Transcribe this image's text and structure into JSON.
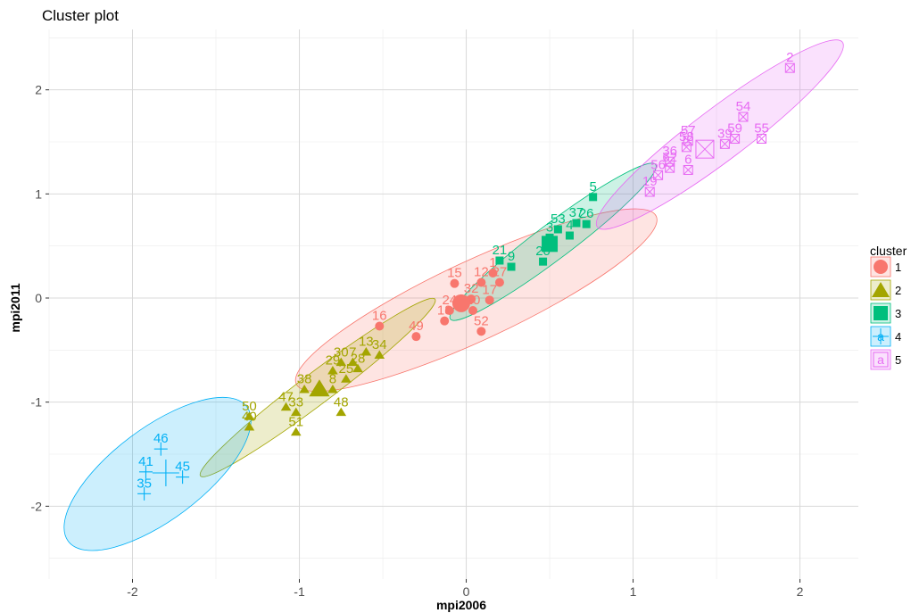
{
  "chart_data": {
    "type": "scatter",
    "title": "Cluster plot",
    "xlabel": "mpi2006",
    "ylabel": "mpi2011",
    "xlim": [
      -2.5,
      2.35
    ],
    "ylim": [
      -2.7,
      2.58
    ],
    "x_ticks": [
      -2,
      -1,
      0,
      1,
      2
    ],
    "x_tick_labels": [
      "-2",
      "-1",
      "0",
      "1",
      "2"
    ],
    "y_ticks": [
      -2,
      -1,
      0,
      1,
      2
    ],
    "y_tick_labels": [
      "-2",
      "-1",
      "0",
      "1",
      "2"
    ],
    "grid": true,
    "legend": {
      "title": "cluster",
      "position": "right",
      "entries": [
        {
          "label": "1",
          "color": "#F8766D",
          "shape": "circle"
        },
        {
          "label": "2",
          "color": "#A3A500",
          "shape": "triangle"
        },
        {
          "label": "3",
          "color": "#00BF7D",
          "shape": "square"
        },
        {
          "label": "4",
          "color": "#00B0F6",
          "shape": "plus",
          "glyph": "a"
        },
        {
          "label": "5",
          "color": "#E76BF3",
          "shape": "boxed-x",
          "glyph": "a"
        }
      ]
    },
    "clusters": [
      {
        "name": "1",
        "color": "#F8766D",
        "shape": "circle",
        "center": [
          -0.03,
          -0.05
        ],
        "ellipse": {
          "cx": 0.06,
          "cy": -0.02,
          "rx": 1.19,
          "ry": 0.38,
          "angle_deg": 25
        },
        "points": [
          {
            "label": "15",
            "x": -0.07,
            "y": 0.14
          },
          {
            "label": "12",
            "x": 0.09,
            "y": 0.15
          },
          {
            "label": "1",
            "x": 0.16,
            "y": 0.24
          },
          {
            "label": "27",
            "x": 0.2,
            "y": 0.15
          },
          {
            "label": "32",
            "x": 0.03,
            "y": -0.01
          },
          {
            "label": "17",
            "x": 0.14,
            "y": -0.02
          },
          {
            "label": "24",
            "x": -0.1,
            "y": -0.12
          },
          {
            "label": "10",
            "x": 0.04,
            "y": -0.12
          },
          {
            "label": "18",
            "x": -0.13,
            "y": -0.22
          },
          {
            "label": "52",
            "x": 0.09,
            "y": -0.32
          },
          {
            "label": "16",
            "x": -0.52,
            "y": -0.27
          },
          {
            "label": "49",
            "x": -0.3,
            "y": -0.37
          }
        ]
      },
      {
        "name": "2",
        "color": "#A3A500",
        "shape": "triangle",
        "center": [
          -0.88,
          -0.88
        ],
        "ellipse": {
          "cx": -0.89,
          "cy": -0.86,
          "rx": 0.88,
          "ry": 0.15,
          "angle_deg": 37
        },
        "points": [
          {
            "label": "13",
            "x": -0.6,
            "y": -0.52
          },
          {
            "label": "34",
            "x": -0.52,
            "y": -0.55
          },
          {
            "label": "30",
            "x": -0.75,
            "y": -0.62
          },
          {
            "label": "7",
            "x": -0.68,
            "y": -0.62
          },
          {
            "label": "28",
            "x": -0.65,
            "y": -0.68
          },
          {
            "label": "29",
            "x": -0.8,
            "y": -0.7
          },
          {
            "label": "25",
            "x": -0.72,
            "y": -0.78
          },
          {
            "label": "38",
            "x": -0.97,
            "y": -0.88
          },
          {
            "label": "8",
            "x": -0.8,
            "y": -0.88
          },
          {
            "label": "48",
            "x": -0.75,
            "y": -1.1
          },
          {
            "label": "47",
            "x": -1.08,
            "y": -1.05
          },
          {
            "label": "33",
            "x": -1.02,
            "y": -1.1
          },
          {
            "label": "50",
            "x": -1.3,
            "y": -1.14
          },
          {
            "label": "40",
            "x": -1.3,
            "y": -1.24
          },
          {
            "label": "51",
            "x": -1.02,
            "y": -1.29
          }
        ]
      },
      {
        "name": "3",
        "color": "#00BF7D",
        "shape": "square",
        "center": [
          0.5,
          0.52
        ],
        "ellipse": {
          "cx": 0.52,
          "cy": 0.54,
          "rx": 0.77,
          "ry": 0.17,
          "angle_deg": 37
        },
        "points": [
          {
            "label": "5",
            "x": 0.76,
            "y": 0.97
          },
          {
            "label": "37",
            "x": 0.66,
            "y": 0.72
          },
          {
            "label": "26",
            "x": 0.72,
            "y": 0.71
          },
          {
            "label": "53",
            "x": 0.55,
            "y": 0.66
          },
          {
            "label": "3",
            "x": 0.5,
            "y": 0.58
          },
          {
            "label": "4",
            "x": 0.62,
            "y": 0.6
          },
          {
            "label": "21",
            "x": 0.2,
            "y": 0.36
          },
          {
            "label": "9",
            "x": 0.27,
            "y": 0.3
          },
          {
            "label": "20",
            "x": 0.46,
            "y": 0.35
          }
        ]
      },
      {
        "name": "4",
        "color": "#00B0F6",
        "shape": "plus",
        "center": [
          -1.8,
          -1.68
        ],
        "ellipse": {
          "cx": -1.85,
          "cy": -1.69,
          "rx": 0.67,
          "ry": 0.44,
          "angle_deg": 37
        },
        "points": [
          {
            "label": "46",
            "x": -1.83,
            "y": -1.45
          },
          {
            "label": "41",
            "x": -1.92,
            "y": -1.67
          },
          {
            "label": "45",
            "x": -1.7,
            "y": -1.72
          },
          {
            "label": "35",
            "x": -1.93,
            "y": -1.88
          }
        ]
      },
      {
        "name": "5",
        "color": "#E76BF3",
        "shape": "boxed-x",
        "center": [
          1.43,
          1.43
        ],
        "ellipse": {
          "cx": 1.52,
          "cy": 1.57,
          "rx": 0.92,
          "ry": 0.25,
          "angle_deg": 37
        },
        "points": [
          {
            "label": "2",
            "x": 1.94,
            "y": 2.21
          },
          {
            "label": "54",
            "x": 1.66,
            "y": 1.74
          },
          {
            "label": "57",
            "x": 1.33,
            "y": 1.51
          },
          {
            "label": "58",
            "x": 1.32,
            "y": 1.45
          },
          {
            "label": "39",
            "x": 1.55,
            "y": 1.48
          },
          {
            "label": "59",
            "x": 1.61,
            "y": 1.53
          },
          {
            "label": "55",
            "x": 1.77,
            "y": 1.53
          },
          {
            "label": "36",
            "x": 1.22,
            "y": 1.31
          },
          {
            "label": "6",
            "x": 1.33,
            "y": 1.23
          },
          {
            "label": "56",
            "x": 1.15,
            "y": 1.18
          },
          {
            "label": "62",
            "x": 1.22,
            "y": 1.25
          },
          {
            "label": "19",
            "x": 1.1,
            "y": 1.02
          }
        ]
      }
    ]
  }
}
